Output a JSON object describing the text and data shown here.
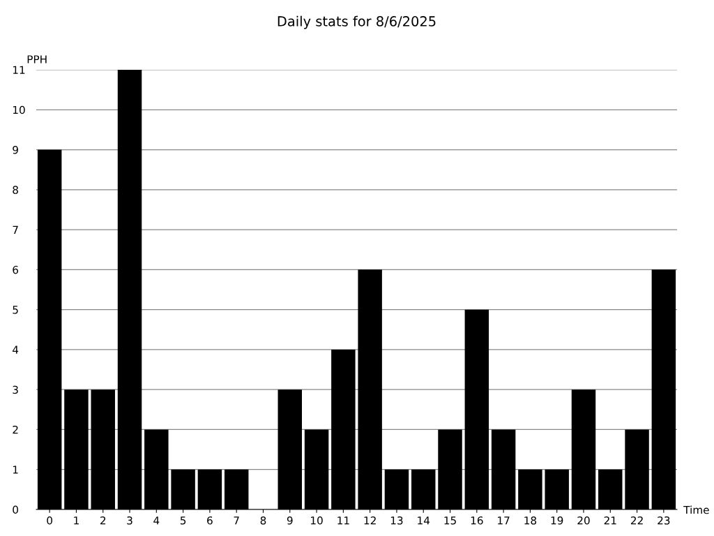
{
  "chart_data": {
    "type": "bar",
    "title": "Daily stats for 8/6/2025",
    "xlabel": "Time",
    "ylabel": "PPH",
    "categories": [
      "0",
      "1",
      "2",
      "3",
      "4",
      "5",
      "6",
      "7",
      "8",
      "9",
      "10",
      "11",
      "12",
      "13",
      "14",
      "15",
      "16",
      "17",
      "18",
      "19",
      "20",
      "21",
      "22",
      "23"
    ],
    "values": [
      9,
      3,
      3,
      11,
      2,
      1,
      1,
      1,
      0,
      3,
      2,
      4,
      6,
      1,
      1,
      2,
      5,
      2,
      1,
      1,
      3,
      1,
      2,
      6
    ],
    "color": "#000000",
    "ylim": [
      0,
      11
    ],
    "yticks": [
      0,
      1,
      2,
      3,
      4,
      5,
      6,
      7,
      8,
      9,
      10,
      11
    ],
    "grid": "y"
  }
}
